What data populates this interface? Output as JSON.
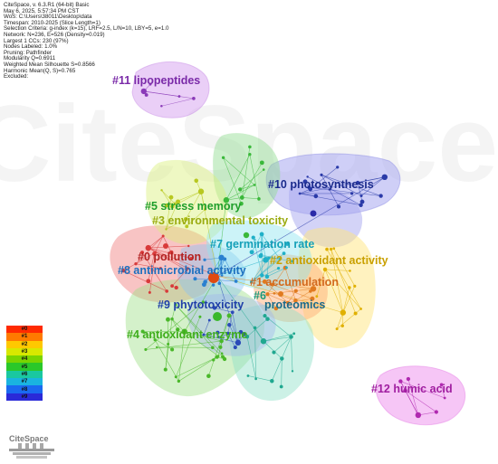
{
  "info": {
    "lines": [
      "CiteSpace, v. 6.3.R1 (64-bit) Basic",
      "May 6, 2025, 5:57:34 PM CST",
      "WoS: C:\\Users\\38011\\Desktop\\data",
      "Timespan: 2010-2025 (Slice Length=1)",
      "Selection Criteria: g-index (k=15), LRF=2.5, L/N=10, LBY=5, e=1.0",
      "Network: N=236, E=526 (Density=0.019)",
      "Largest 1 CCs: 230 (97%)",
      "Nodes Labeled: 1.0%",
      "Pruning: Pathfinder",
      "Modularity Q=0.6911",
      "Weighted Mean Silhouette S=0.8566",
      "Harmonic Mean(Q, S)=0.765",
      "Excluded:"
    ]
  },
  "watermark": "CiteSpace",
  "clusters": [
    {
      "id": 0,
      "label": "#0 pollution",
      "color": "#b22222",
      "hull": "#f28a8a"
    },
    {
      "id": 1,
      "label": "#1 accumulation",
      "color": "#d2691e",
      "hull": "#ffb07a"
    },
    {
      "id": 2,
      "label": "#2 antioxidant activity",
      "color": "#c9a000",
      "hull": "#ffe680"
    },
    {
      "id": 3,
      "label": "#3 environmental toxicity",
      "color": "#9aab10",
      "hull": "#d9ef7a"
    },
    {
      "id": 4,
      "label": "#4 antioxidant enzyme",
      "color": "#3fae1c",
      "hull": "#9fe08a"
    },
    {
      "id": 5,
      "label": "#5 stress memory",
      "color": "#1e9e2a",
      "hull": "#8fdc8f"
    },
    {
      "id": 6,
      "label": "#6",
      "color": "#1a9a7a",
      "hull": "#8fe0c8"
    },
    {
      "id": 7,
      "label": "#7 germination rate",
      "color": "#14a0b8",
      "hull": "#8fe4f0"
    },
    {
      "id": 8,
      "label": "#8 antimicrobial activity",
      "color": "#1c6fbf",
      "hull": "#8fc4f0"
    },
    {
      "id": 9,
      "label": "#9 phytotoxicity",
      "color": "#1f3fa8",
      "hull": "#9fb4ee"
    },
    {
      "id": 10,
      "label": "#10 photosynthesis",
      "color": "#1a2a8c",
      "hull": "#a8a8f0"
    },
    {
      "id": 11,
      "label": "#11 lipopeptides",
      "color": "#7a2aa8",
      "hull": "#d9a8f0"
    },
    {
      "id": 12,
      "label": "#12 humic acid",
      "color": "#a01ea0",
      "hull": "#f0a0f0"
    },
    {
      "id": 13,
      "label": "proteomics",
      "color": "#1a6a8a",
      "hull": "#8fe0c8"
    }
  ],
  "legend": {
    "items": [
      {
        "label": "#0",
        "color": "#ff2a00"
      },
      {
        "label": "#1",
        "color": "#ff7a00"
      },
      {
        "label": "#2",
        "color": "#ffc800"
      },
      {
        "label": "#3",
        "color": "#d8e800"
      },
      {
        "label": "#4",
        "color": "#7ad400"
      },
      {
        "label": "#5",
        "color": "#2ac82a"
      },
      {
        "label": "#6",
        "color": "#1ac8a0"
      },
      {
        "label": "#7",
        "color": "#1ab4e0"
      },
      {
        "label": "#8",
        "color": "#1a6af0"
      },
      {
        "label": "#9",
        "color": "#2a2ad8"
      }
    ]
  },
  "logo": {
    "text": "CiteSpace"
  }
}
